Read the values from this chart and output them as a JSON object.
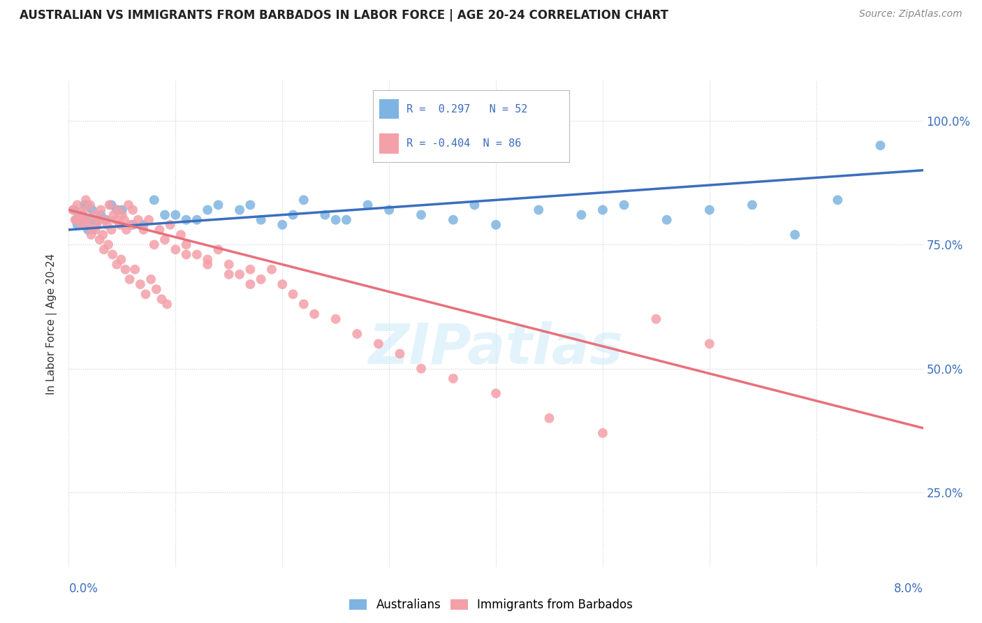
{
  "title": "AUSTRALIAN VS IMMIGRANTS FROM BARBADOS IN LABOR FORCE | AGE 20-24 CORRELATION CHART",
  "source": "Source: ZipAtlas.com",
  "ylabel": "In Labor Force | Age 20-24",
  "watermark": "ZIPatlas",
  "xlim": [
    0.0,
    8.0
  ],
  "ylim": [
    10.0,
    108.0
  ],
  "yticks_right": [
    25.0,
    50.0,
    75.0,
    100.0
  ],
  "ytick_labels_right": [
    "25.0%",
    "50.0%",
    "75.0%",
    "100.0%"
  ],
  "blue_R": 0.297,
  "blue_N": 52,
  "pink_R": -0.404,
  "pink_N": 86,
  "blue_color": "#7EB4E2",
  "pink_color": "#F4A0A8",
  "blue_line_color": "#3B6EBF",
  "pink_line_color": "#E8707A",
  "legend_label_blue": "Australians",
  "legend_label_pink": "Immigrants from Barbados",
  "blue_line_x0": 0.0,
  "blue_line_y0": 78.0,
  "blue_line_x1": 8.0,
  "blue_line_y1": 90.0,
  "pink_line_x0": 0.0,
  "pink_line_y0": 82.0,
  "pink_line_x1": 8.0,
  "pink_line_y1": 38.0,
  "blue_scatter_x": [
    0.05,
    0.08,
    0.1,
    0.12,
    0.15,
    0.18,
    0.2,
    0.22,
    0.25,
    0.3,
    0.35,
    0.4,
    0.5,
    0.6,
    0.8,
    1.0,
    1.2,
    1.4,
    1.6,
    1.8,
    2.0,
    2.2,
    2.4,
    2.6,
    2.8,
    3.0,
    3.3,
    3.6,
    4.0,
    4.4,
    4.8,
    5.2,
    5.6,
    6.0,
    6.4,
    6.8,
    7.2,
    7.6,
    0.07,
    0.13,
    0.17,
    0.28,
    0.45,
    0.7,
    0.9,
    1.1,
    1.3,
    1.7,
    2.1,
    2.5,
    3.8,
    5.0
  ],
  "blue_scatter_y": [
    82,
    79,
    81,
    80,
    83,
    78,
    80,
    82,
    79,
    81,
    80,
    83,
    82,
    79,
    84,
    81,
    80,
    83,
    82,
    80,
    79,
    84,
    81,
    80,
    83,
    82,
    81,
    80,
    79,
    82,
    81,
    83,
    80,
    82,
    83,
    77,
    84,
    95,
    80,
    81,
    83,
    80,
    82,
    79,
    81,
    80,
    82,
    83,
    81,
    80,
    83,
    82
  ],
  "pink_scatter_x": [
    0.04,
    0.06,
    0.08,
    0.1,
    0.12,
    0.14,
    0.16,
    0.18,
    0.2,
    0.22,
    0.24,
    0.26,
    0.28,
    0.3,
    0.32,
    0.34,
    0.36,
    0.38,
    0.4,
    0.42,
    0.44,
    0.46,
    0.48,
    0.5,
    0.52,
    0.54,
    0.56,
    0.58,
    0.6,
    0.65,
    0.7,
    0.75,
    0.8,
    0.85,
    0.9,
    0.95,
    1.0,
    1.05,
    1.1,
    1.2,
    1.3,
    1.4,
    1.5,
    1.6,
    1.7,
    1.8,
    1.9,
    2.0,
    2.1,
    2.2,
    2.3,
    2.5,
    2.7,
    2.9,
    3.1,
    3.3,
    3.6,
    4.0,
    4.5,
    5.0,
    0.09,
    0.13,
    0.17,
    0.21,
    0.25,
    0.29,
    0.33,
    0.37,
    0.41,
    0.45,
    0.49,
    0.53,
    0.57,
    0.62,
    0.67,
    0.72,
    0.77,
    0.82,
    0.87,
    0.92,
    1.1,
    1.3,
    1.5,
    1.7,
    5.5,
    6.0
  ],
  "pink_scatter_y": [
    82,
    80,
    83,
    81,
    79,
    82,
    84,
    80,
    83,
    78,
    81,
    79,
    80,
    82,
    77,
    80,
    79,
    83,
    78,
    81,
    80,
    82,
    79,
    81,
    80,
    78,
    83,
    79,
    82,
    80,
    78,
    80,
    75,
    78,
    76,
    79,
    74,
    77,
    75,
    73,
    72,
    74,
    71,
    69,
    70,
    68,
    70,
    67,
    65,
    63,
    61,
    60,
    57,
    55,
    53,
    50,
    48,
    45,
    40,
    37,
    80,
    81,
    79,
    77,
    78,
    76,
    74,
    75,
    73,
    71,
    72,
    70,
    68,
    70,
    67,
    65,
    68,
    66,
    64,
    63,
    73,
    71,
    69,
    67,
    60,
    55
  ]
}
